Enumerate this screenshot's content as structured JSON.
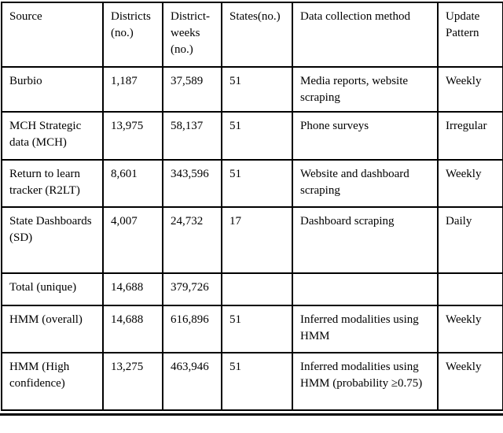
{
  "table": {
    "columns": [
      {
        "label": "Source"
      },
      {
        "label": "Districts (no.)"
      },
      {
        "label": "District-weeks (no.)"
      },
      {
        "label": "States(no.)"
      },
      {
        "label": "Data collection method"
      },
      {
        "label": "Update Pattern"
      }
    ],
    "rows": [
      {
        "source": "Burbio",
        "districts": "1,187",
        "district_weeks": "37,589",
        "states": "51",
        "method": "Media reports, website scraping",
        "update": "Weekly"
      },
      {
        "source": "MCH Strategic data (MCH)",
        "districts": "13,975",
        "district_weeks": "58,137",
        "states": "51",
        "method": "Phone surveys",
        "update": "Irregular"
      },
      {
        "source": "Return to learn tracker (R2LT)",
        "districts": "8,601",
        "district_weeks": "343,596",
        "states": "51",
        "method": "Website and dashboard scraping",
        "update": "Weekly"
      },
      {
        "source": "State Dashboards (SD)",
        "districts": "4,007",
        "district_weeks": "24,732",
        "states": "17",
        "method": "Dashboard scraping",
        "update": "Daily"
      },
      {
        "source": "Total (unique)",
        "districts": "14,688",
        "district_weeks": "379,726",
        "states": "",
        "method": "",
        "update": ""
      },
      {
        "source": "HMM (overall)",
        "districts": "14,688",
        "district_weeks": "616,896",
        "states": "51",
        "method": "Inferred modalities using HMM",
        "update": "Weekly"
      },
      {
        "source": "HMM (High confidence)",
        "districts": "13,275",
        "district_weeks": "463,946",
        "states": "51",
        "method": "Inferred modalities using HMM (probability ≥0.75)",
        "update": "Weekly"
      }
    ]
  },
  "colors": {
    "border": "#000000",
    "text": "#000000",
    "background": "#ffffff"
  }
}
